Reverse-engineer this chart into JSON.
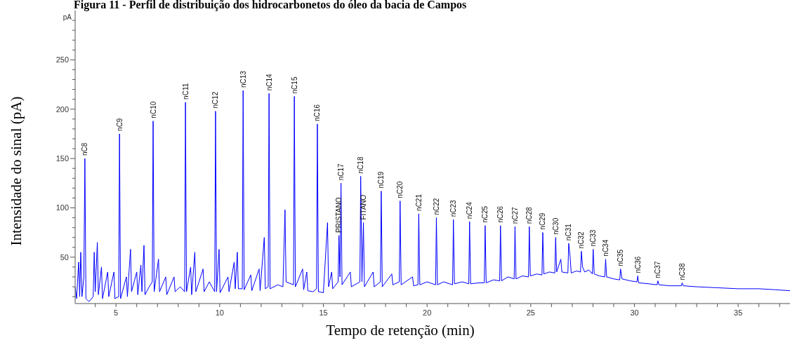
{
  "chart_data": {
    "type": "line",
    "title": "Figura 11 - Perfil de distribuição dos hidrocarbonetos do óleo da bacia de Campos",
    "xlabel": "Tempo de retenção (min)",
    "ylabel": "Intensidade do sinal (pA)",
    "xlim": [
      3.03,
      37.5
    ],
    "ylim": [
      3,
      300
    ],
    "xticks": [
      {
        "value": 4,
        "label": null
      },
      5,
      {
        "value": 6,
        "label": null
      },
      {
        "value": 7,
        "label": null
      },
      {
        "value": 8,
        "label": null
      },
      {
        "value": 9,
        "label": null
      },
      10,
      {
        "value": 11,
        "label": null
      },
      {
        "value": 12,
        "label": null
      },
      {
        "value": 13,
        "label": null
      },
      {
        "value": 14,
        "label": null
      },
      15,
      {
        "value": 16,
        "label": null
      },
      {
        "value": 17,
        "label": null
      },
      {
        "value": 18,
        "label": null
      },
      {
        "value": 19,
        "label": null
      },
      20,
      {
        "value": 21,
        "label": null
      },
      {
        "value": 22,
        "label": null
      },
      {
        "value": 23,
        "label": null
      },
      {
        "value": 24,
        "label": null
      },
      25,
      {
        "value": 26,
        "label": null
      },
      {
        "value": 27,
        "label": null
      },
      {
        "value": 28,
        "label": null
      },
      {
        "value": 29,
        "label": null
      },
      30,
      {
        "value": 31,
        "label": null
      },
      {
        "value": 32,
        "label": null
      },
      {
        "value": 33,
        "label": null
      },
      {
        "value": 34,
        "label": null
      },
      35,
      {
        "value": 36,
        "label": null
      },
      {
        "value": 37,
        "label": null
      }
    ],
    "yticks": [
      {
        "value": 10,
        "label": null
      },
      {
        "value": 20,
        "label": null
      },
      {
        "value": 30,
        "label": null
      },
      {
        "value": 40,
        "label": null
      },
      50,
      {
        "value": 60,
        "label": null
      },
      {
        "value": 70,
        "label": null
      },
      {
        "value": 80,
        "label": null
      },
      {
        "value": 90,
        "label": null
      },
      100,
      {
        "value": 110,
        "label": null
      },
      {
        "value": 120,
        "label": null
      },
      {
        "value": 130,
        "label": null
      },
      {
        "value": 140,
        "label": null
      },
      150,
      {
        "value": 160,
        "label": null
      },
      {
        "value": 170,
        "label": null
      },
      {
        "value": 180,
        "label": null
      },
      {
        "value": 190,
        "label": null
      },
      200,
      {
        "value": 210,
        "label": null
      },
      {
        "value": 220,
        "label": null
      },
      {
        "value": 230,
        "label": null
      },
      {
        "value": 240,
        "label": null
      },
      250,
      {
        "value": 260,
        "label": null
      },
      {
        "value": 270,
        "label": null
      },
      {
        "value": 280,
        "label": null
      },
      {
        "value": 290,
        "label": null
      }
    ],
    "grid": false,
    "marker": "none",
    "line_style": "solid",
    "series": [
      {
        "color": "#0000ff",
        "x": [
          3.03,
          3.1,
          3.2,
          3.25,
          3.3,
          3.36,
          3.45,
          3.5,
          3.55,
          3.7,
          3.9,
          3.95,
          4.0,
          4.1,
          4.15,
          4.3,
          4.35,
          4.6,
          4.65,
          4.9,
          4.95,
          5.13,
          5.17,
          5.22,
          5.5,
          5.55,
          5.7,
          5.75,
          6.0,
          6.05,
          6.2,
          6.25,
          6.35,
          6.4,
          6.6,
          6.75,
          6.79,
          6.84,
          7.05,
          7.1,
          7.4,
          7.45,
          7.8,
          7.85,
          8.1,
          8.31,
          8.35,
          8.4,
          8.6,
          8.65,
          8.8,
          8.85,
          9.2,
          9.25,
          9.5,
          9.76,
          9.8,
          9.85,
          9.97,
          10.02,
          10.4,
          10.45,
          10.7,
          10.75,
          10.85,
          10.9,
          11.09,
          11.13,
          11.18,
          11.5,
          11.55,
          11.9,
          11.95,
          12.15,
          12.2,
          12.34,
          12.38,
          12.43,
          12.8,
          13.05,
          13.15,
          13.2,
          13.56,
          13.6,
          13.65,
          14.0,
          14.05,
          14.2,
          14.25,
          14.5,
          14.67,
          14.71,
          14.76,
          15.0,
          15.2,
          15.25,
          15.4,
          15.45,
          15.71,
          15.75,
          15.8,
          15.85,
          15.9,
          16.3,
          16.35,
          16.76,
          16.8,
          16.86,
          16.93,
          16.98,
          17.4,
          17.45,
          17.75,
          17.79,
          17.84,
          18.3,
          18.35,
          18.66,
          18.7,
          18.75,
          19.3,
          19.35,
          19.56,
          19.6,
          19.65,
          20.0,
          20.41,
          20.45,
          20.5,
          20.8,
          21.23,
          21.27,
          21.32,
          21.7,
          22.01,
          22.05,
          22.1,
          22.5,
          22.76,
          22.8,
          22.85,
          23.2,
          23.5,
          23.54,
          23.59,
          23.9,
          24.2,
          24.24,
          24.29,
          24.6,
          24.89,
          24.93,
          24.98,
          25.3,
          25.54,
          25.58,
          25.63,
          25.9,
          26.16,
          26.2,
          26.25,
          26.45,
          26.5,
          26.79,
          26.83,
          26.9,
          26.95,
          27.2,
          27.4,
          27.44,
          27.5,
          27.6,
          27.8,
          27.97,
          28.01,
          28.06,
          28.3,
          28.57,
          28.61,
          28.66,
          29.0,
          29.29,
          29.33,
          29.4,
          29.8,
          30.12,
          30.16,
          30.2,
          30.7,
          31.09,
          31.13,
          31.18,
          31.7,
          32.26,
          32.3,
          32.35,
          33.0,
          34.0,
          35.0,
          36.0,
          36.8,
          37.5
        ],
        "values": [
          20,
          8,
          45,
          10,
          55,
          10,
          30,
          150,
          8,
          5,
          10,
          55,
          15,
          65,
          12,
          40,
          8,
          35,
          10,
          35,
          8,
          10,
          175,
          8,
          30,
          10,
          58,
          15,
          35,
          12,
          42,
          15,
          62,
          12,
          20,
          25,
          188,
          15,
          48,
          15,
          30,
          12,
          30,
          15,
          20,
          15,
          207,
          15,
          40,
          12,
          55,
          15,
          38,
          15,
          25,
          15,
          198,
          15,
          58,
          14,
          30,
          15,
          45,
          18,
          55,
          18,
          18,
          219,
          17,
          32,
          16,
          38,
          16,
          70,
          18,
          20,
          216,
          18,
          22,
          20,
          98,
          25,
          22,
          213,
          20,
          38,
          17,
          35,
          16,
          15,
          18,
          185,
          15,
          14,
          85,
          20,
          35,
          18,
          25,
          72,
          30,
          125,
          22,
          35,
          20,
          25,
          132,
          25,
          85,
          20,
          35,
          20,
          25,
          117,
          20,
          33,
          22,
          25,
          107,
          22,
          30,
          21,
          22,
          94,
          22,
          25,
          22,
          90,
          22,
          25,
          22,
          88,
          23,
          25,
          23,
          86,
          23,
          24,
          24,
          82,
          24,
          27,
          26,
          82,
          26,
          30,
          28,
          81,
          28,
          31,
          30,
          81,
          31,
          33,
          32,
          75,
          33,
          35,
          34,
          70,
          35,
          48,
          35,
          34,
          64,
          50,
          34,
          36,
          35,
          56,
          40,
          35,
          37,
          33,
          58,
          33,
          31,
          30,
          48,
          30,
          28,
          27,
          38,
          28,
          26,
          25,
          31,
          24,
          23,
          22,
          26,
          22,
          21,
          21,
          24,
          21,
          20,
          19,
          18,
          18,
          17,
          16
        ]
      }
    ],
    "annotations": [
      "pA",
      {
        "text": "nC8",
        "x": 3.5,
        "y": 150
      },
      {
        "text": "nC9",
        "x": 5.17,
        "y": 175
      },
      {
        "text": "nC10",
        "x": 6.79,
        "y": 188
      },
      {
        "text": "nC11",
        "x": 8.35,
        "y": 207
      },
      {
        "text": "nC12",
        "x": 9.8,
        "y": 198
      },
      {
        "text": "nC13",
        "x": 11.13,
        "y": 219
      },
      {
        "text": "nC14",
        "x": 12.38,
        "y": 216
      },
      {
        "text": "nC15",
        "x": 13.6,
        "y": 213
      },
      {
        "text": "nC16",
        "x": 14.71,
        "y": 185
      },
      {
        "text": "PRISTANO",
        "x": 15.75,
        "y": 72
      },
      {
        "text": "nC17",
        "x": 15.85,
        "y": 125
      },
      {
        "text": "nC18",
        "x": 16.8,
        "y": 132
      },
      {
        "text": "FITANO",
        "x": 16.93,
        "y": 85
      },
      {
        "text": "nC19",
        "x": 17.79,
        "y": 117
      },
      {
        "text": "nC20",
        "x": 18.7,
        "y": 107
      },
      {
        "text": "nC21",
        "x": 19.6,
        "y": 94
      },
      {
        "text": "nC22",
        "x": 20.45,
        "y": 90
      },
      {
        "text": "nC23",
        "x": 21.27,
        "y": 88
      },
      {
        "text": "nC24",
        "x": 22.05,
        "y": 86
      },
      {
        "text": "nC25",
        "x": 22.8,
        "y": 82
      },
      {
        "text": "nC26",
        "x": 23.54,
        "y": 82
      },
      {
        "text": "nC27",
        "x": 24.24,
        "y": 81
      },
      {
        "text": "nC28",
        "x": 24.93,
        "y": 81
      },
      {
        "text": "nC29",
        "x": 25.58,
        "y": 75
      },
      {
        "text": "nC30",
        "x": 26.2,
        "y": 70
      },
      {
        "text": "nC31",
        "x": 26.83,
        "y": 64
      },
      {
        "text": "nC32",
        "x": 27.44,
        "y": 56
      },
      {
        "text": "nC33",
        "x": 28.01,
        "y": 58
      },
      {
        "text": "nC34",
        "x": 28.61,
        "y": 48
      },
      {
        "text": "nC35",
        "x": 29.33,
        "y": 38
      },
      {
        "text": "nC36",
        "x": 30.16,
        "y": 31
      },
      {
        "text": "nC37",
        "x": 31.13,
        "y": 26
      },
      {
        "text": "nC38",
        "x": 32.3,
        "y": 24
      }
    ]
  }
}
